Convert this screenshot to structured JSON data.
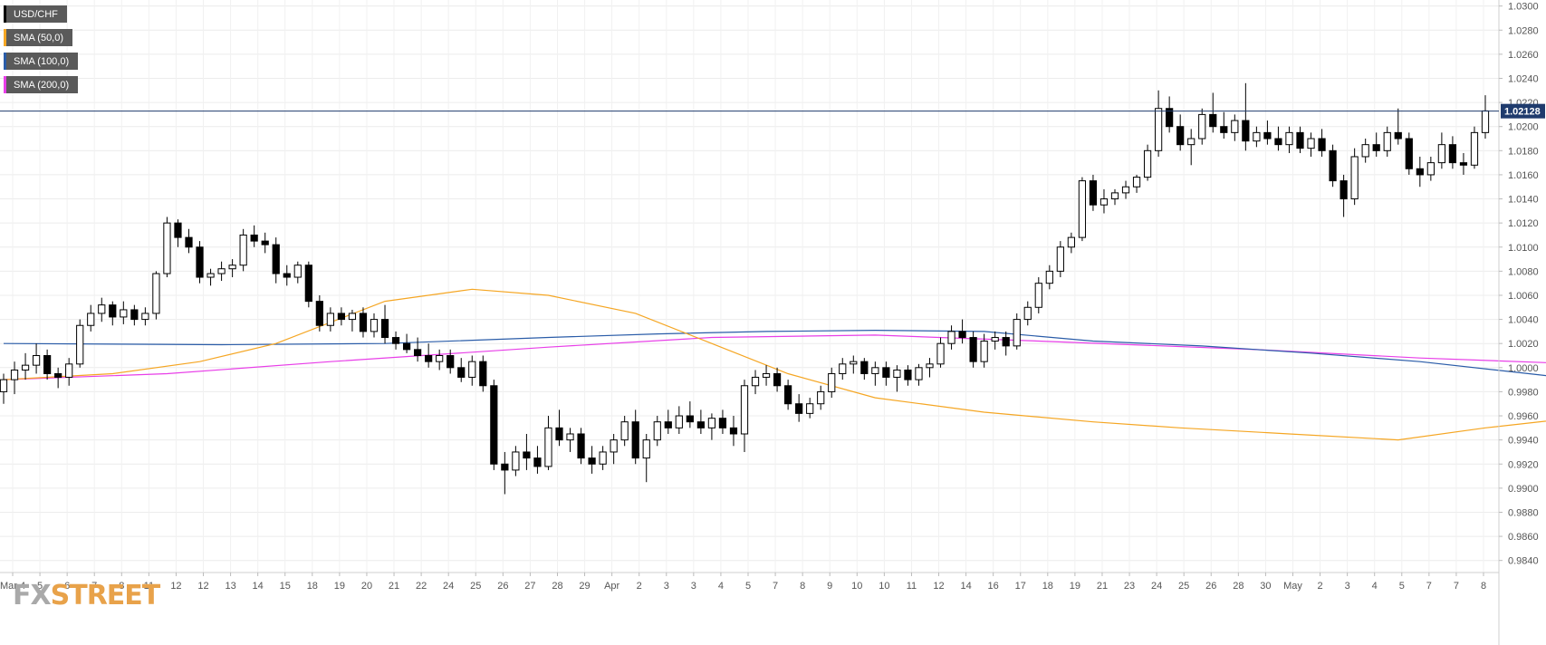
{
  "chart_data": {
    "type": "candlestick",
    "symbol": "USD/CHF",
    "last_price_label": "1.02128",
    "last_price": 1.02128,
    "ylim": [
      0.983,
      1.0305
    ],
    "y_ticks": [
      "1.0300",
      "1.0280",
      "1.0260",
      "1.0240",
      "1.0220",
      "1.0200",
      "1.0180",
      "1.0160",
      "1.0140",
      "1.0120",
      "1.0100",
      "1.0080",
      "1.0060",
      "1.0040",
      "1.0020",
      "1.0000",
      "0.9980",
      "0.9960",
      "0.9940",
      "0.9920",
      "0.9900",
      "0.9880",
      "0.9860",
      "0.9840"
    ],
    "x_ticks": [
      "Mar 4",
      "5",
      "6",
      "7",
      "8",
      "11",
      "12",
      "12",
      "13",
      "14",
      "15",
      "18",
      "19",
      "20",
      "21",
      "22",
      "24",
      "25",
      "26",
      "27",
      "28",
      "29",
      "Apr",
      "2",
      "3",
      "3",
      "4",
      "5",
      "7",
      "8",
      "9",
      "10",
      "10",
      "11",
      "12",
      "14",
      "16",
      "17",
      "18",
      "19",
      "21",
      "23",
      "24",
      "25",
      "26",
      "28",
      "30",
      "May",
      "2",
      "3",
      "4",
      "5",
      "7",
      "7",
      "8"
    ],
    "legend": [
      {
        "label": "USD/CHF",
        "color": "#000000"
      },
      {
        "label": "SMA (50,0)",
        "color": "#f5a623"
      },
      {
        "label": "SMA (100,0)",
        "color": "#2a5ca8"
      },
      {
        "label": "SMA (200,0)",
        "color": "#e83ee8"
      }
    ],
    "candles": [
      [
        0.998,
        0.9995,
        0.997,
        0.999
      ],
      [
        0.999,
        1.0005,
        0.9978,
        0.9998
      ],
      [
        0.9998,
        1.0012,
        0.999,
        1.0002
      ],
      [
        1.0002,
        1.002,
        0.9995,
        1.001
      ],
      [
        1.001,
        1.0015,
        0.999,
        0.9995
      ],
      [
        0.9995,
        1.0,
        0.9983,
        0.9992
      ],
      [
        0.9992,
        1.0008,
        0.9985,
        1.0003
      ],
      [
        1.0003,
        1.004,
        1.0,
        1.0035
      ],
      [
        1.0035,
        1.0052,
        1.003,
        1.0045
      ],
      [
        1.0045,
        1.0058,
        1.0038,
        1.0052
      ],
      [
        1.0052,
        1.0055,
        1.0035,
        1.0042
      ],
      [
        1.0042,
        1.0055,
        1.0036,
        1.0048
      ],
      [
        1.0048,
        1.0052,
        1.0035,
        1.004
      ],
      [
        1.004,
        1.005,
        1.0035,
        1.0045
      ],
      [
        1.0045,
        1.008,
        1.004,
        1.0078
      ],
      [
        1.0078,
        1.0125,
        1.0075,
        1.012
      ],
      [
        1.012,
        1.0123,
        1.01,
        1.0108
      ],
      [
        1.0108,
        1.0115,
        1.0095,
        1.01
      ],
      [
        1.01,
        1.0105,
        1.007,
        1.0075
      ],
      [
        1.0075,
        1.0082,
        1.0068,
        1.0078
      ],
      [
        1.0078,
        1.0088,
        1.0072,
        1.0082
      ],
      [
        1.0082,
        1.009,
        1.0075,
        1.0085
      ],
      [
        1.0085,
        1.0115,
        1.008,
        1.011
      ],
      [
        1.011,
        1.0118,
        1.01,
        1.0105
      ],
      [
        1.0105,
        1.0112,
        1.0095,
        1.0102
      ],
      [
        1.0102,
        1.0108,
        1.007,
        1.0078
      ],
      [
        1.0078,
        1.0085,
        1.0068,
        1.0075
      ],
      [
        1.0075,
        1.0088,
        1.007,
        1.0085
      ],
      [
        1.0085,
        1.0088,
        1.005,
        1.0055
      ],
      [
        1.0055,
        1.006,
        1.003,
        1.0035
      ],
      [
        1.0035,
        1.005,
        1.003,
        1.0045
      ],
      [
        1.0045,
        1.005,
        1.0035,
        1.004
      ],
      [
        1.004,
        1.0048,
        1.003,
        1.0045
      ],
      [
        1.0045,
        1.005,
        1.0025,
        1.003
      ],
      [
        1.003,
        1.0045,
        1.0025,
        1.004
      ],
      [
        1.004,
        1.0052,
        1.002,
        1.0025
      ],
      [
        1.0025,
        1.003,
        1.0015,
        1.002
      ],
      [
        1.002,
        1.0028,
        1.0012,
        1.0015
      ],
      [
        1.0015,
        1.0025,
        1.0005,
        1.001
      ],
      [
        1.001,
        1.002,
        1.0,
        1.0005
      ],
      [
        1.0005,
        1.0015,
        0.9998,
        1.001
      ],
      [
        1.001,
        1.0015,
        0.9995,
        1.0
      ],
      [
        1.0,
        1.0008,
        0.9988,
        0.9992
      ],
      [
        0.9992,
        1.001,
        0.9985,
        1.0005
      ],
      [
        1.0005,
        1.001,
        0.998,
        0.9985
      ],
      [
        0.9985,
        0.999,
        0.9915,
        0.992
      ],
      [
        0.992,
        0.993,
        0.9895,
        0.9915
      ],
      [
        0.9915,
        0.9935,
        0.991,
        0.993
      ],
      [
        0.993,
        0.9945,
        0.9915,
        0.9925
      ],
      [
        0.9925,
        0.9935,
        0.9912,
        0.9918
      ],
      [
        0.9918,
        0.996,
        0.9915,
        0.995
      ],
      [
        0.995,
        0.9965,
        0.9935,
        0.994
      ],
      [
        0.994,
        0.995,
        0.993,
        0.9945
      ],
      [
        0.9945,
        0.995,
        0.992,
        0.9925
      ],
      [
        0.9925,
        0.9935,
        0.9912,
        0.992
      ],
      [
        0.992,
        0.9935,
        0.9915,
        0.993
      ],
      [
        0.993,
        0.9945,
        0.992,
        0.994
      ],
      [
        0.994,
        0.996,
        0.9935,
        0.9955
      ],
      [
        0.9955,
        0.9965,
        0.992,
        0.9925
      ],
      [
        0.9925,
        0.9945,
        0.9905,
        0.994
      ],
      [
        0.994,
        0.996,
        0.9935,
        0.9955
      ],
      [
        0.9955,
        0.9965,
        0.9945,
        0.995
      ],
      [
        0.995,
        0.9968,
        0.9945,
        0.996
      ],
      [
        0.996,
        0.9972,
        0.995,
        0.9955
      ],
      [
        0.9955,
        0.9965,
        0.9945,
        0.995
      ],
      [
        0.995,
        0.9962,
        0.994,
        0.9958
      ],
      [
        0.9958,
        0.9965,
        0.9945,
        0.995
      ],
      [
        0.995,
        0.996,
        0.9935,
        0.9945
      ],
      [
        0.9945,
        0.999,
        0.993,
        0.9985
      ],
      [
        0.9985,
        0.9998,
        0.9978,
        0.9992
      ],
      [
        0.9992,
        1.0002,
        0.9985,
        0.9995
      ],
      [
        0.9995,
        1.0,
        0.998,
        0.9985
      ],
      [
        0.9985,
        0.999,
        0.9965,
        0.997
      ],
      [
        0.997,
        0.9978,
        0.9955,
        0.9962
      ],
      [
        0.9962,
        0.9975,
        0.9958,
        0.997
      ],
      [
        0.997,
        0.9985,
        0.9965,
        0.998
      ],
      [
        0.998,
        1.0,
        0.9975,
        0.9995
      ],
      [
        0.9995,
        1.0008,
        0.999,
        1.0003
      ],
      [
        1.0003,
        1.001,
        0.9995,
        1.0005
      ],
      [
        1.0005,
        1.0008,
        0.999,
        0.9995
      ],
      [
        0.9995,
        1.0005,
        0.9985,
        1.0
      ],
      [
        1.0,
        1.0005,
        0.9985,
        0.9992
      ],
      [
        0.9992,
        1.0002,
        0.998,
        0.9998
      ],
      [
        0.9998,
        1.0002,
        0.9985,
        0.999
      ],
      [
        0.999,
        1.0003,
        0.9985,
        1.0
      ],
      [
        1.0,
        1.0008,
        0.9992,
        1.0003
      ],
      [
        1.0003,
        1.0025,
        1.0,
        1.002
      ],
      [
        1.002,
        1.0035,
        1.0015,
        1.003
      ],
      [
        1.003,
        1.004,
        1.002,
        1.0025
      ],
      [
        1.0025,
        1.003,
        1.0,
        1.0005
      ],
      [
        1.0005,
        1.0028,
        1.0,
        1.0022
      ],
      [
        1.0022,
        1.003,
        1.0015,
        1.0025
      ],
      [
        1.0025,
        1.003,
        1.001,
        1.0018
      ],
      [
        1.0018,
        1.0045,
        1.0015,
        1.004
      ],
      [
        1.004,
        1.0055,
        1.0035,
        1.005
      ],
      [
        1.005,
        1.0075,
        1.0045,
        1.007
      ],
      [
        1.007,
        1.0085,
        1.0065,
        1.008
      ],
      [
        1.008,
        1.0105,
        1.0075,
        1.01
      ],
      [
        1.01,
        1.0112,
        1.0095,
        1.0108
      ],
      [
        1.0108,
        1.0158,
        1.0105,
        1.0155
      ],
      [
        1.0155,
        1.016,
        1.013,
        1.0135
      ],
      [
        1.0135,
        1.0148,
        1.0128,
        1.014
      ],
      [
        1.014,
        1.0148,
        1.0135,
        1.0145
      ],
      [
        1.0145,
        1.0155,
        1.014,
        1.015
      ],
      [
        1.015,
        1.016,
        1.0145,
        1.0158
      ],
      [
        1.0158,
        1.0185,
        1.0155,
        1.018
      ],
      [
        1.018,
        1.023,
        1.0175,
        1.0215
      ],
      [
        1.0215,
        1.0225,
        1.0195,
        1.02
      ],
      [
        1.02,
        1.021,
        1.018,
        1.0185
      ],
      [
        1.0185,
        1.0198,
        1.0168,
        1.019
      ],
      [
        1.019,
        1.0215,
        1.0185,
        1.021
      ],
      [
        1.021,
        1.0228,
        1.0195,
        1.02
      ],
      [
        1.02,
        1.0212,
        1.019,
        1.0195
      ],
      [
        1.0195,
        1.021,
        1.0188,
        1.0205
      ],
      [
        1.0205,
        1.0236,
        1.018,
        1.0188
      ],
      [
        1.0188,
        1.02,
        1.0183,
        1.0195
      ],
      [
        1.0195,
        1.0205,
        1.0185,
        1.019
      ],
      [
        1.019,
        1.02,
        1.018,
        1.0185
      ],
      [
        1.0185,
        1.02,
        1.0178,
        1.0195
      ],
      [
        1.0195,
        1.02,
        1.0178,
        1.0182
      ],
      [
        1.0182,
        1.0195,
        1.0175,
        1.019
      ],
      [
        1.019,
        1.0198,
        1.0175,
        1.018
      ],
      [
        1.018,
        1.0185,
        1.015,
        1.0155
      ],
      [
        1.0155,
        1.016,
        1.0125,
        1.014
      ],
      [
        1.014,
        1.0182,
        1.0135,
        1.0175
      ],
      [
        1.0175,
        1.019,
        1.017,
        1.0185
      ],
      [
        1.0185,
        1.0195,
        1.0175,
        1.018
      ],
      [
        1.018,
        1.02,
        1.0175,
        1.0195
      ],
      [
        1.0195,
        1.0215,
        1.0185,
        1.019
      ],
      [
        1.019,
        1.0195,
        1.016,
        1.0165
      ],
      [
        1.0165,
        1.0175,
        1.015,
        1.016
      ],
      [
        1.016,
        1.0175,
        1.0155,
        1.017
      ],
      [
        1.017,
        1.0195,
        1.0165,
        1.0185
      ],
      [
        1.0185,
        1.0192,
        1.0165,
        1.017
      ],
      [
        1.017,
        1.0178,
        1.016,
        1.0168
      ],
      [
        1.0168,
        1.02,
        1.0165,
        1.0195
      ],
      [
        1.0195,
        1.0226,
        1.019,
        1.0213
      ]
    ],
    "sma50": [
      [
        0,
        0.999
      ],
      [
        10,
        0.9995
      ],
      [
        18,
        1.0005
      ],
      [
        25,
        1.002
      ],
      [
        35,
        1.0055
      ],
      [
        43,
        1.0065
      ],
      [
        50,
        1.006
      ],
      [
        58,
        1.0045
      ],
      [
        65,
        1.002
      ],
      [
        72,
        0.9995
      ],
      [
        80,
        0.9975
      ],
      [
        90,
        0.9963
      ],
      [
        100,
        0.9955
      ],
      [
        108,
        0.995
      ],
      [
        118,
        0.9945
      ],
      [
        128,
        0.994
      ],
      [
        136,
        0.995
      ],
      [
        146,
        0.996
      ],
      [
        155,
        0.9963
      ],
      [
        165,
        0.9975
      ],
      [
        175,
        0.9985
      ],
      [
        185,
        0.999
      ],
      [
        195,
        0.9998
      ],
      [
        205,
        1.0008
      ],
      [
        215,
        1.0018
      ],
      [
        225,
        1.0025
      ],
      [
        235,
        1.004
      ],
      [
        245,
        1.007
      ],
      [
        255,
        1.0105
      ],
      [
        265,
        1.0135
      ],
      [
        275,
        1.016
      ],
      [
        285,
        1.0175
      ],
      [
        290,
        1.018
      ],
      [
        300,
        1.0183
      ],
      [
        310,
        1.0185
      ],
      [
        320,
        1.0187
      ]
    ],
    "sma100": [
      [
        0,
        1.002
      ],
      [
        20,
        1.0019
      ],
      [
        35,
        1.002
      ],
      [
        50,
        1.0025
      ],
      [
        60,
        1.0028
      ],
      [
        70,
        1.003
      ],
      [
        80,
        1.0031
      ],
      [
        90,
        1.003
      ],
      [
        100,
        1.0022
      ],
      [
        110,
        1.0018
      ],
      [
        120,
        1.0012
      ],
      [
        130,
        1.0005
      ],
      [
        140,
        0.9995
      ],
      [
        150,
        0.9985
      ],
      [
        160,
        0.9978
      ],
      [
        175,
        0.9972
      ],
      [
        190,
        0.9968
      ],
      [
        205,
        0.997
      ],
      [
        215,
        0.998
      ],
      [
        230,
        0.9995
      ],
      [
        245,
        1.002
      ],
      [
        255,
        1.0045
      ],
      [
        265,
        1.007
      ],
      [
        275,
        1.0095
      ],
      [
        285,
        1.0118
      ],
      [
        295,
        1.0132
      ],
      [
        305,
        1.0145
      ],
      [
        315,
        1.0155
      ],
      [
        320,
        1.0162
      ]
    ],
    "sma200": [
      [
        0,
        0.999
      ],
      [
        15,
        0.9995
      ],
      [
        30,
        1.0005
      ],
      [
        50,
        1.0017
      ],
      [
        65,
        1.0025
      ],
      [
        80,
        1.0027
      ],
      [
        95,
        1.0022
      ],
      [
        115,
        1.0015
      ],
      [
        130,
        1.0008
      ],
      [
        145,
        1.0003
      ],
      [
        165,
        1.0
      ],
      [
        185,
        1.0
      ],
      [
        200,
        1.0002
      ],
      [
        215,
        1.0005
      ],
      [
        230,
        1.0012
      ],
      [
        245,
        1.002
      ],
      [
        260,
        1.0028
      ],
      [
        280,
        1.0038
      ],
      [
        300,
        1.005
      ],
      [
        315,
        1.0063
      ],
      [
        320,
        1.0071
      ]
    ]
  },
  "watermark": {
    "part1": "FX",
    "part2": "STREET"
  }
}
